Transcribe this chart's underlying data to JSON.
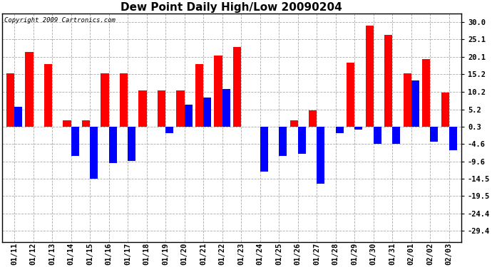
{
  "title": "Dew Point Daily High/Low 20090204",
  "copyright": "Copyright 2009 Cartronics.com",
  "dates": [
    "01/11",
    "01/12",
    "01/13",
    "01/14",
    "01/15",
    "01/16",
    "01/17",
    "01/18",
    "01/19",
    "01/20",
    "01/21",
    "01/22",
    "01/23",
    "01/24",
    "01/25",
    "01/26",
    "01/27",
    "01/28",
    "01/29",
    "01/30",
    "01/31",
    "02/01",
    "02/02",
    "02/03"
  ],
  "highs": [
    15.5,
    21.5,
    18.0,
    2.0,
    2.0,
    15.5,
    15.5,
    10.5,
    10.5,
    10.5,
    18.0,
    20.5,
    23.0,
    0.3,
    0.3,
    2.0,
    5.0,
    0.3,
    18.5,
    29.0,
    26.5,
    15.5,
    19.5,
    10.0
  ],
  "lows": [
    6.0,
    0.3,
    0.3,
    -8.0,
    -14.5,
    -10.0,
    -9.5,
    0.3,
    -1.5,
    6.5,
    8.5,
    11.0,
    0.3,
    -12.5,
    -8.0,
    -7.5,
    -16.0,
    -1.5,
    -0.5,
    -4.6,
    -4.6,
    13.5,
    -4.0,
    -6.5
  ],
  "bar_color_high": "#FF0000",
  "bar_color_low": "#0000FF",
  "background_color": "#FFFFFF",
  "grid_color": "#AAAAAA",
  "yticks": [
    30.0,
    25.1,
    20.1,
    15.2,
    10.2,
    5.2,
    0.3,
    -4.6,
    -9.6,
    -14.5,
    -19.5,
    -24.4,
    -29.4
  ],
  "ymin": -32.5,
  "ymax": 32.5,
  "zero": 0.3,
  "bar_width": 0.42,
  "title_fontsize": 11,
  "tick_fontsize": 7.5,
  "copyright_fontsize": 6.5
}
